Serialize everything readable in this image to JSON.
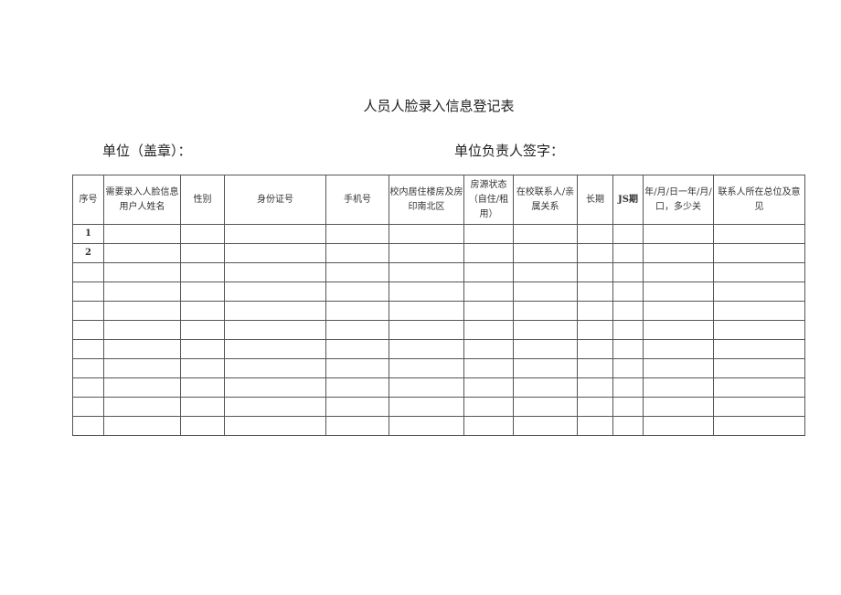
{
  "title": "人员人脸录入信息登记表",
  "unit_label": "单位（盖章）：",
  "sign_label": "单位负责人签字：",
  "table": {
    "headers": [
      "序号",
      "需要录入人脸信息用户人姓名",
      "性别",
      "身份证号",
      "手机号",
      "校内居住楼房及房印南北区",
      "房源状态（自住/租用）",
      "在校联系人/亲属关系",
      "长期",
      "JS期",
      "年/月/日一年/月/口，多少关",
      "联系人所在总位及意见"
    ],
    "rows": [
      [
        "1"
      ],
      [
        "2"
      ],
      [
        ""
      ],
      [
        ""
      ],
      [
        ""
      ],
      [
        ""
      ],
      [
        ""
      ],
      [
        ""
      ],
      [
        ""
      ],
      [
        ""
      ],
      [
        ""
      ]
    ]
  }
}
